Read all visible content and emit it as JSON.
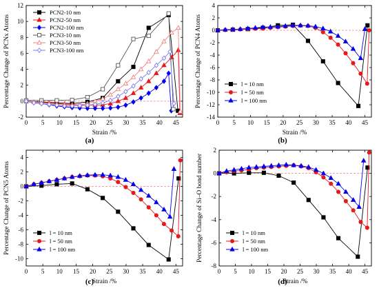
{
  "figure": {
    "panel_labels": [
      "(a)",
      "(b)",
      "(c)",
      "(d)"
    ]
  },
  "chart_data": [
    {
      "type": "line",
      "panel": "(a)",
      "xlabel": "Strain  /%",
      "ylabel": "Percentage Change of PCNx Atoms",
      "xlim": [
        0,
        47
      ],
      "ylim": [
        -2,
        12
      ],
      "xticks": [
        0,
        5,
        10,
        15,
        20,
        25,
        30,
        35,
        40,
        45
      ],
      "yticks": [
        -2,
        0,
        2,
        4,
        6,
        8,
        10,
        12
      ],
      "legend_position": "top-left",
      "grid": false,
      "series": [
        {
          "name": "PCN2-10 nm",
          "color": "#000000",
          "marker": "square",
          "filled": true,
          "x": [
            0,
            4.6,
            9.2,
            13.8,
            18.4,
            23,
            27.6,
            32.2,
            36.8,
            42.8,
            45.6
          ],
          "y": [
            0,
            -0.1,
            -0.2,
            -0.3,
            -0.1,
            0.4,
            2.5,
            4.3,
            9.2,
            10.8,
            -1.2
          ]
        },
        {
          "name": "PCN2-50 nm",
          "color": "#e41a1c",
          "marker": "triangle",
          "filled": true,
          "x": [
            0,
            2.3,
            4.6,
            6.9,
            9.2,
            11.5,
            13.8,
            16.1,
            18.4,
            20.7,
            23,
            25.3,
            27.6,
            29.9,
            32.2,
            34.5,
            36.8,
            39.1,
            41.4,
            43.7,
            45.7,
            46.2
          ],
          "y": [
            0,
            -0.1,
            -0.15,
            -0.2,
            -0.3,
            -0.35,
            -0.4,
            -0.45,
            -0.5,
            -0.5,
            -0.45,
            -0.3,
            0,
            0.4,
            1,
            1.7,
            2.5,
            3.5,
            4.5,
            5.5,
            6.4,
            -1.5
          ]
        },
        {
          "name": "PCN2-100 nm",
          "color": "#0000ee",
          "marker": "diamond",
          "filled": true,
          "x": [
            0,
            2.3,
            4.6,
            6.9,
            9.2,
            11.5,
            13.8,
            16.1,
            18.4,
            20.7,
            23,
            25.3,
            27.6,
            29.9,
            32.2,
            34.5,
            36.8,
            39.1,
            41.4,
            42.8,
            43.6
          ],
          "y": [
            0,
            -0.2,
            -0.3,
            -0.45,
            -0.6,
            -0.7,
            -0.8,
            -0.85,
            -0.9,
            -0.9,
            -0.9,
            -0.85,
            -0.75,
            -0.5,
            -0.1,
            0.4,
            1,
            1.7,
            2.5,
            3.5,
            -1.2
          ]
        },
        {
          "name": "PCN3-10 nm",
          "color": "#555555",
          "marker": "square",
          "filled": false,
          "x": [
            0,
            4.6,
            9.2,
            13.8,
            18.4,
            23,
            27.6,
            32.2,
            36.8,
            42.8,
            44.2
          ],
          "y": [
            0.1,
            0.1,
            0.1,
            0.15,
            0.5,
            1.5,
            4.5,
            7.8,
            8.2,
            11,
            -1
          ]
        },
        {
          "name": "PCN3-50 nm",
          "color": "#f08080",
          "marker": "triangle",
          "filled": false,
          "x": [
            0,
            2.3,
            4.6,
            6.9,
            9.2,
            11.5,
            13.8,
            16.1,
            18.4,
            20.7,
            23,
            25.3,
            27.6,
            29.9,
            32.2,
            34.5,
            36.8,
            39.1,
            41.4,
            43.7,
            45.7,
            46.3
          ],
          "y": [
            0,
            -0.1,
            -0.2,
            -0.3,
            -0.4,
            -0.45,
            -0.5,
            -0.45,
            -0.3,
            0,
            0.3,
            0.8,
            1.5,
            2.2,
            3,
            4,
            5,
            6.2,
            7.5,
            8.6,
            9.2,
            -1.3
          ]
        },
        {
          "name": "PCN3-100 nm",
          "color": "#7b7bee",
          "marker": "diamond",
          "filled": false,
          "x": [
            0,
            2.3,
            4.6,
            6.9,
            9.2,
            11.5,
            13.8,
            16.1,
            18.4,
            20.7,
            23,
            25.3,
            27.6,
            29.9,
            32.2,
            34.5,
            36.8,
            39.1,
            41.4,
            43.2,
            44.4
          ],
          "y": [
            0,
            -0.2,
            -0.3,
            -0.4,
            -0.5,
            -0.6,
            -0.6,
            -0.55,
            -0.5,
            -0.4,
            -0.2,
            0.1,
            0.6,
            1.2,
            1.9,
            2.8,
            3.6,
            4.5,
            5.4,
            6.2,
            -0.3
          ]
        }
      ]
    },
    {
      "type": "line",
      "panel": "(b)",
      "xlabel": "Strain  /%",
      "ylabel": "Percentage Change of PCN4 Atoms",
      "xlim": [
        0,
        47
      ],
      "ylim": [
        -14,
        4
      ],
      "xticks": [
        0,
        5,
        10,
        15,
        20,
        25,
        30,
        35,
        40,
        45
      ],
      "yticks": [
        -14,
        -12,
        -10,
        -8,
        -6,
        -4,
        -2,
        0,
        2,
        4
      ],
      "legend_position": "bottom-left",
      "grid": false,
      "series": [
        {
          "name": "l = 10 nm",
          "color": "#000000",
          "marker": "square",
          "filled": true,
          "x": [
            0,
            4.6,
            9.2,
            13.8,
            18.4,
            23,
            27.6,
            32.2,
            36.8,
            43,
            45.8
          ],
          "y": [
            0,
            0.1,
            0.2,
            0.4,
            0.8,
            0.9,
            -1.7,
            -5,
            -8.5,
            -12.2,
            0.8
          ]
        },
        {
          "name": "l = 50 nm",
          "color": "#e41a1c",
          "marker": "circle",
          "filled": true,
          "x": [
            0,
            2.3,
            4.6,
            6.9,
            9.2,
            11.5,
            13.8,
            16.1,
            18.4,
            20.7,
            23,
            25.3,
            27.6,
            29.9,
            32.2,
            34.5,
            36.8,
            39.1,
            41.4,
            43.7,
            45.7,
            46.3
          ],
          "y": [
            0,
            0.05,
            0.1,
            0.15,
            0.2,
            0.25,
            0.3,
            0.4,
            0.5,
            0.6,
            0.7,
            0.75,
            0.7,
            0.4,
            -0.3,
            -1.2,
            -2.3,
            -3.7,
            -5.3,
            -7,
            -8.6,
            0
          ]
        },
        {
          "name": "l = 100 nm",
          "color": "#0000ee",
          "marker": "triangle",
          "filled": true,
          "x": [
            0,
            2.3,
            4.6,
            6.9,
            9.2,
            11.5,
            13.8,
            16.1,
            18.4,
            20.7,
            23,
            25.3,
            27.6,
            29.9,
            32.2,
            34.5,
            36.8,
            39.1,
            41.4,
            43.7,
            45
          ],
          "y": [
            0,
            0.1,
            0.15,
            0.2,
            0.3,
            0.4,
            0.5,
            0.55,
            0.6,
            0.7,
            0.8,
            0.8,
            0.75,
            0.6,
            0.3,
            -0.2,
            -0.9,
            -1.8,
            -3,
            -4.5,
            0.2
          ]
        }
      ]
    },
    {
      "type": "line",
      "panel": "(c)",
      "xlabel": "Strain  /%",
      "ylabel": "Percentage Change of PCN5 Atoms",
      "xlim": [
        0,
        47
      ],
      "ylim": [
        -11,
        5
      ],
      "xticks": [
        0,
        5,
        10,
        15,
        20,
        25,
        30,
        35,
        40,
        45
      ],
      "yticks": [
        -10,
        -8,
        -6,
        -4,
        -2,
        0,
        2,
        4
      ],
      "legend_position": "bottom-left",
      "grid": false,
      "series": [
        {
          "name": "l = 10 nm",
          "color": "#000000",
          "marker": "square",
          "filled": true,
          "x": [
            0,
            4.6,
            9.2,
            13.8,
            18.4,
            23,
            27.6,
            32.2,
            36.8,
            42.8,
            45.8
          ],
          "y": [
            0,
            0.1,
            0.3,
            0.4,
            -0.4,
            -1.6,
            -3.5,
            -5.8,
            -8.1,
            -10.1,
            1.1
          ]
        },
        {
          "name": "l = 50 nm",
          "color": "#e41a1c",
          "marker": "circle",
          "filled": true,
          "x": [
            0,
            2.3,
            4.6,
            6.9,
            9.2,
            11.5,
            13.8,
            16.1,
            18.4,
            20.7,
            23,
            25.3,
            27.6,
            29.9,
            32.2,
            34.5,
            36.8,
            39.1,
            41.4,
            43.7,
            45.7,
            46.3
          ],
          "y": [
            0,
            0.3,
            0.5,
            0.7,
            0.9,
            1.1,
            1.3,
            1.4,
            1.5,
            1.5,
            1.4,
            1.1,
            0.6,
            -0.1,
            -0.9,
            -1.8,
            -2.9,
            -4,
            -5.2,
            -6.1,
            -6.9,
            3.6
          ]
        },
        {
          "name": "l = 100 nm",
          "color": "#0000ee",
          "marker": "triangle",
          "filled": true,
          "x": [
            0,
            2.3,
            4.6,
            6.9,
            9.2,
            11.5,
            13.8,
            16.1,
            18.4,
            20.7,
            23,
            25.3,
            27.6,
            29.9,
            32.2,
            34.5,
            36.8,
            39.1,
            41.4,
            43.2,
            44.4
          ],
          "y": [
            0,
            0.3,
            0.5,
            0.7,
            0.9,
            1.1,
            1.3,
            1.45,
            1.55,
            1.6,
            1.6,
            1.5,
            1.3,
            0.9,
            0.3,
            -0.5,
            -1.3,
            -2.2,
            -3.2,
            -4.2,
            2.4
          ]
        }
      ]
    },
    {
      "type": "line",
      "panel": "(d)",
      "xlabel": "Strain  /%",
      "ylabel": "Percentage Change of Si–O bond number",
      "xlim": [
        0,
        47
      ],
      "ylim": [
        -8,
        2
      ],
      "xticks": [
        0,
        5,
        10,
        15,
        20,
        25,
        30,
        35,
        40,
        45
      ],
      "yticks": [
        -8,
        -6,
        -4,
        -2,
        0,
        2
      ],
      "legend_position": "bottom-left",
      "grid": false,
      "series": [
        {
          "name": "l = 10 nm",
          "color": "#000000",
          "marker": "square",
          "filled": true,
          "x": [
            0,
            4.6,
            9.2,
            13.8,
            18.4,
            23,
            27.6,
            32.2,
            36.8,
            42.8,
            45.8
          ],
          "y": [
            0,
            0,
            0.05,
            0.05,
            -0.2,
            -0.8,
            -2.3,
            -3.8,
            -5.6,
            -7.2,
            0.5
          ]
        },
        {
          "name": "l = 50 nm",
          "color": "#e41a1c",
          "marker": "circle",
          "filled": true,
          "x": [
            0,
            2.3,
            4.6,
            6.9,
            9.2,
            11.5,
            13.8,
            16.1,
            18.4,
            20.7,
            23,
            25.3,
            27.6,
            29.9,
            32.2,
            34.5,
            36.8,
            39.1,
            41.4,
            43.7,
            45.7,
            46.3
          ],
          "y": [
            0,
            0.1,
            0.2,
            0.25,
            0.35,
            0.45,
            0.5,
            0.55,
            0.6,
            0.65,
            0.7,
            0.6,
            0.45,
            0.1,
            -0.35,
            -0.9,
            -1.6,
            -2.4,
            -3.2,
            -4.2,
            -4.7,
            1.8
          ]
        },
        {
          "name": "l = 100 nm",
          "color": "#0000ee",
          "marker": "triangle",
          "filled": true,
          "x": [
            0,
            2.3,
            4.6,
            6.9,
            9.2,
            11.5,
            13.8,
            16.1,
            18.4,
            20.7,
            23,
            25.3,
            27.6,
            29.9,
            32.2,
            34.5,
            36.8,
            39.1,
            41.4,
            43.2,
            44.6
          ],
          "y": [
            0,
            0.2,
            0.3,
            0.4,
            0.5,
            0.55,
            0.6,
            0.65,
            0.7,
            0.75,
            0.7,
            0.65,
            0.55,
            0.3,
            0,
            -0.4,
            -0.9,
            -1.6,
            -2.3,
            -2.9,
            1.1
          ]
        }
      ]
    }
  ]
}
